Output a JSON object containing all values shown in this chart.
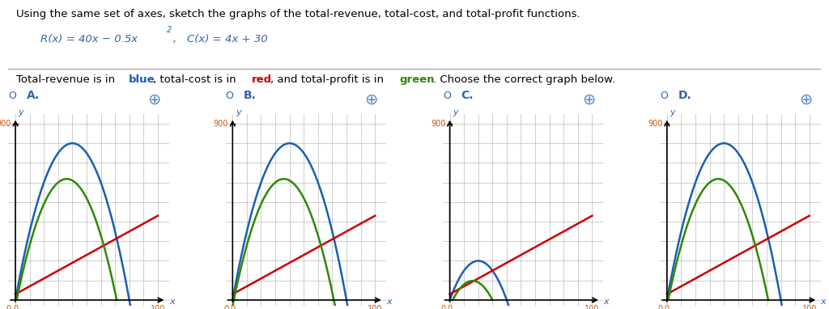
{
  "title_text": "Using the same set of axes, sketch the graphs of the total-revenue, total-cost, and total-profit functions.",
  "formula_text": "R(x) = 40x − 0.5x²,   C(x) = 4x + 30",
  "subtitle_text": "Total-revenue is in blue, total-cost is in red, and total-profit is in green. Choose the correct graph below.",
  "options": [
    "A.",
    "B.",
    "C.",
    "D."
  ],
  "xmin": 0,
  "xmax": 110,
  "ymin": 0,
  "ymax": 950,
  "ytick": 900,
  "xtick": 100,
  "blue_color": "#1a5fb4",
  "red_color": "#cc0000",
  "green_color": "#2d8a00",
  "bg_color": "#ffffff",
  "grid_color": "#bbbbbb",
  "option_color": "#3465a4",
  "text_color": "#000000",
  "formula_color": "#3465a4",
  "subtitle_blue": "#1a5fb4",
  "subtitle_red": "#cc0000",
  "subtitle_green": "#2d8a00"
}
